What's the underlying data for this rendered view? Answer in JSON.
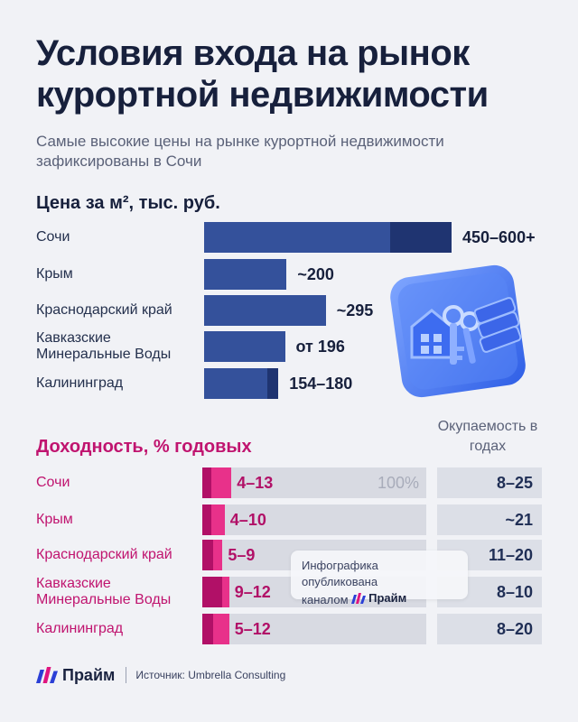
{
  "title": "Условия входа на рынок курортной недвижимости",
  "subtitle": "Самые высокие цены на рынке курортной недвижимости зафиксированы в Сочи",
  "chart_data": [
    {
      "type": "bar",
      "title": "Цена за м², тыс. руб.",
      "categories": [
        "Сочи",
        "Крым",
        "Краснодарский край",
        "Кавказские Минеральные Воды",
        "Калининград"
      ],
      "value_labels": [
        "450–600+",
        "~200",
        "~295",
        "от 196",
        "154–180"
      ],
      "ranges": [
        [
          450,
          600
        ],
        [
          200,
          200
        ],
        [
          295,
          295
        ],
        [
          196,
          196
        ],
        [
          154,
          180
        ]
      ],
      "xlim": [
        0,
        600
      ],
      "colors": {
        "base": "#34519b",
        "range": "#1f3471"
      }
    },
    {
      "type": "bar",
      "title": "Доходность, % годовых",
      "categories": [
        "Сочи",
        "Крым",
        "Краснодарский край",
        "Кавказские Минеральные Воды",
        "Калининград"
      ],
      "value_labels": [
        "4–13",
        "4–10",
        "5–9",
        "9–12",
        "5–12"
      ],
      "ranges": [
        [
          4,
          13
        ],
        [
          4,
          10
        ],
        [
          5,
          9
        ],
        [
          9,
          12
        ],
        [
          5,
          12
        ]
      ],
      "xlim": [
        0,
        100
      ],
      "scale_label": "100%",
      "colors": {
        "min": "#b11067",
        "range": "#e8318a",
        "track": "#d8dae2"
      }
    },
    {
      "type": "table",
      "title": "Окупаемость в годах",
      "categories": [
        "Сочи",
        "Крым",
        "Краснодарский край",
        "Кавказские Минеральные Воды",
        "Калининград"
      ],
      "values": [
        "8–25",
        "~21",
        "11–20",
        "8–10",
        "8–20"
      ]
    }
  ],
  "watermark": {
    "line1": "Инфографика опубликована",
    "line2": "каналом",
    "brand": "Прайм"
  },
  "footer": {
    "brand": "Прайм",
    "source": "Источник: Umbrella Consulting"
  }
}
